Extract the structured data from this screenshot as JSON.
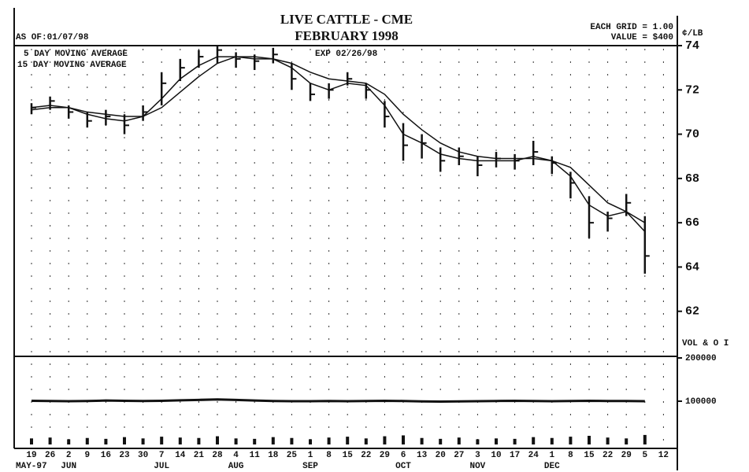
{
  "chart_data": {
    "type": "ohlc",
    "title": "LIVE CATTLE - CME",
    "subtitle": "FEBRUARY 1998",
    "as_of": "AS OF:01/07/98",
    "grid_note": "EACH GRID = 1.00",
    "value_note": "VALUE = $400",
    "unit": "¢/LB",
    "expiry": "EXP 02/26/98",
    "categories": [
      "19",
      "26",
      "2",
      "9",
      "16",
      "23",
      "30",
      "7",
      "14",
      "21",
      "28",
      "4",
      "11",
      "18",
      "25",
      "1",
      "8",
      "15",
      "22",
      "29",
      "6",
      "13",
      "20",
      "27",
      "3",
      "10",
      "17",
      "24",
      "1",
      "8",
      "15",
      "22",
      "29",
      "5",
      "12"
    ],
    "months": [
      "MAY-97",
      null,
      "JUN",
      null,
      null,
      null,
      null,
      "JUL",
      null,
      null,
      null,
      "AUG",
      null,
      null,
      null,
      "SEP",
      null,
      null,
      null,
      null,
      "OCT",
      null,
      null,
      null,
      "NOV",
      null,
      null,
      null,
      "DEC",
      null,
      null,
      null,
      null,
      null,
      null
    ],
    "high": [
      71.4,
      71.7,
      71.3,
      71.0,
      71.1,
      70.9,
      71.3,
      72.8,
      73.4,
      73.8,
      74.0,
      73.7,
      73.6,
      73.9,
      73.2,
      72.3,
      72.3,
      72.8,
      72.3,
      71.5,
      70.5,
      70.0,
      69.4,
      69.4,
      69.0,
      69.2,
      69.1,
      69.7,
      69.0,
      68.3,
      67.2,
      66.5,
      67.3,
      66.3,
      null
    ],
    "low": [
      70.9,
      71.1,
      70.7,
      70.3,
      70.4,
      70.0,
      70.6,
      71.3,
      72.4,
      73.0,
      73.2,
      73.0,
      72.9,
      73.2,
      72.0,
      71.5,
      71.6,
      72.2,
      71.6,
      70.3,
      68.8,
      68.9,
      68.3,
      68.6,
      68.1,
      68.5,
      68.4,
      68.6,
      68.2,
      67.1,
      65.3,
      65.6,
      66.3,
      63.7,
      null
    ],
    "close": [
      71.2,
      71.5,
      71.0,
      70.6,
      70.8,
      70.4,
      71.0,
      72.3,
      73.0,
      73.5,
      73.8,
      73.4,
      73.3,
      73.6,
      72.5,
      71.8,
      72.0,
      72.5,
      72.0,
      70.8,
      69.5,
      69.6,
      68.8,
      69.0,
      68.6,
      68.9,
      68.8,
      69.2,
      68.7,
      67.8,
      66.0,
      66.2,
      66.9,
      64.5,
      null
    ],
    "series": [
      {
        "name": "5 DAY MOVING AVERAGE",
        "color": "#111111",
        "values": [
          71.2,
          71.3,
          71.2,
          70.9,
          70.7,
          70.6,
          70.8,
          71.6,
          72.5,
          73.1,
          73.5,
          73.5,
          73.4,
          73.4,
          73.0,
          72.3,
          72.0,
          72.3,
          72.2,
          71.3,
          70.0,
          69.6,
          69.1,
          68.9,
          68.8,
          68.8,
          68.8,
          69.0,
          68.8,
          68.1,
          66.8,
          66.3,
          66.5,
          65.6,
          null
        ]
      },
      {
        "name": "15 DAY MOVING AVERAGE",
        "color": "#111111",
        "values": [
          71.1,
          71.2,
          71.2,
          71.0,
          70.9,
          70.8,
          70.8,
          71.2,
          71.9,
          72.6,
          73.2,
          73.5,
          73.5,
          73.4,
          73.2,
          72.8,
          72.5,
          72.4,
          72.3,
          71.8,
          70.9,
          70.2,
          69.6,
          69.2,
          69.0,
          68.9,
          68.9,
          68.9,
          68.8,
          68.5,
          67.7,
          66.9,
          66.5,
          66.0,
          null
        ]
      }
    ],
    "ylim": [
      60,
      74
    ],
    "yticks": [
      62,
      64,
      66,
      68,
      70,
      72,
      74
    ],
    "volume_panel": {
      "label": "VOL & O I",
      "ylim": [
        0,
        200000
      ],
      "yticks": [
        100000,
        200000
      ],
      "volume": [
        14000,
        16000,
        12000,
        15000,
        13000,
        17000,
        14000,
        18000,
        16000,
        15000,
        19000,
        14000,
        13000,
        17000,
        15000,
        12000,
        16000,
        18000,
        14000,
        19000,
        21000,
        15000,
        13000,
        16000,
        12000,
        14000,
        13000,
        17000,
        15000,
        18000,
        20000,
        16000,
        14000,
        22000,
        null
      ],
      "open_interest": [
        101000,
        100500,
        100000,
        100500,
        101500,
        101000,
        100500,
        101000,
        102000,
        103000,
        104000,
        103000,
        101500,
        100500,
        100000,
        100000,
        100500,
        100000,
        100500,
        101000,
        100500,
        99500,
        99000,
        99500,
        100000,
        100500,
        101000,
        100500,
        100000,
        100500,
        101000,
        100500,
        100500,
        100000,
        null
      ]
    }
  }
}
